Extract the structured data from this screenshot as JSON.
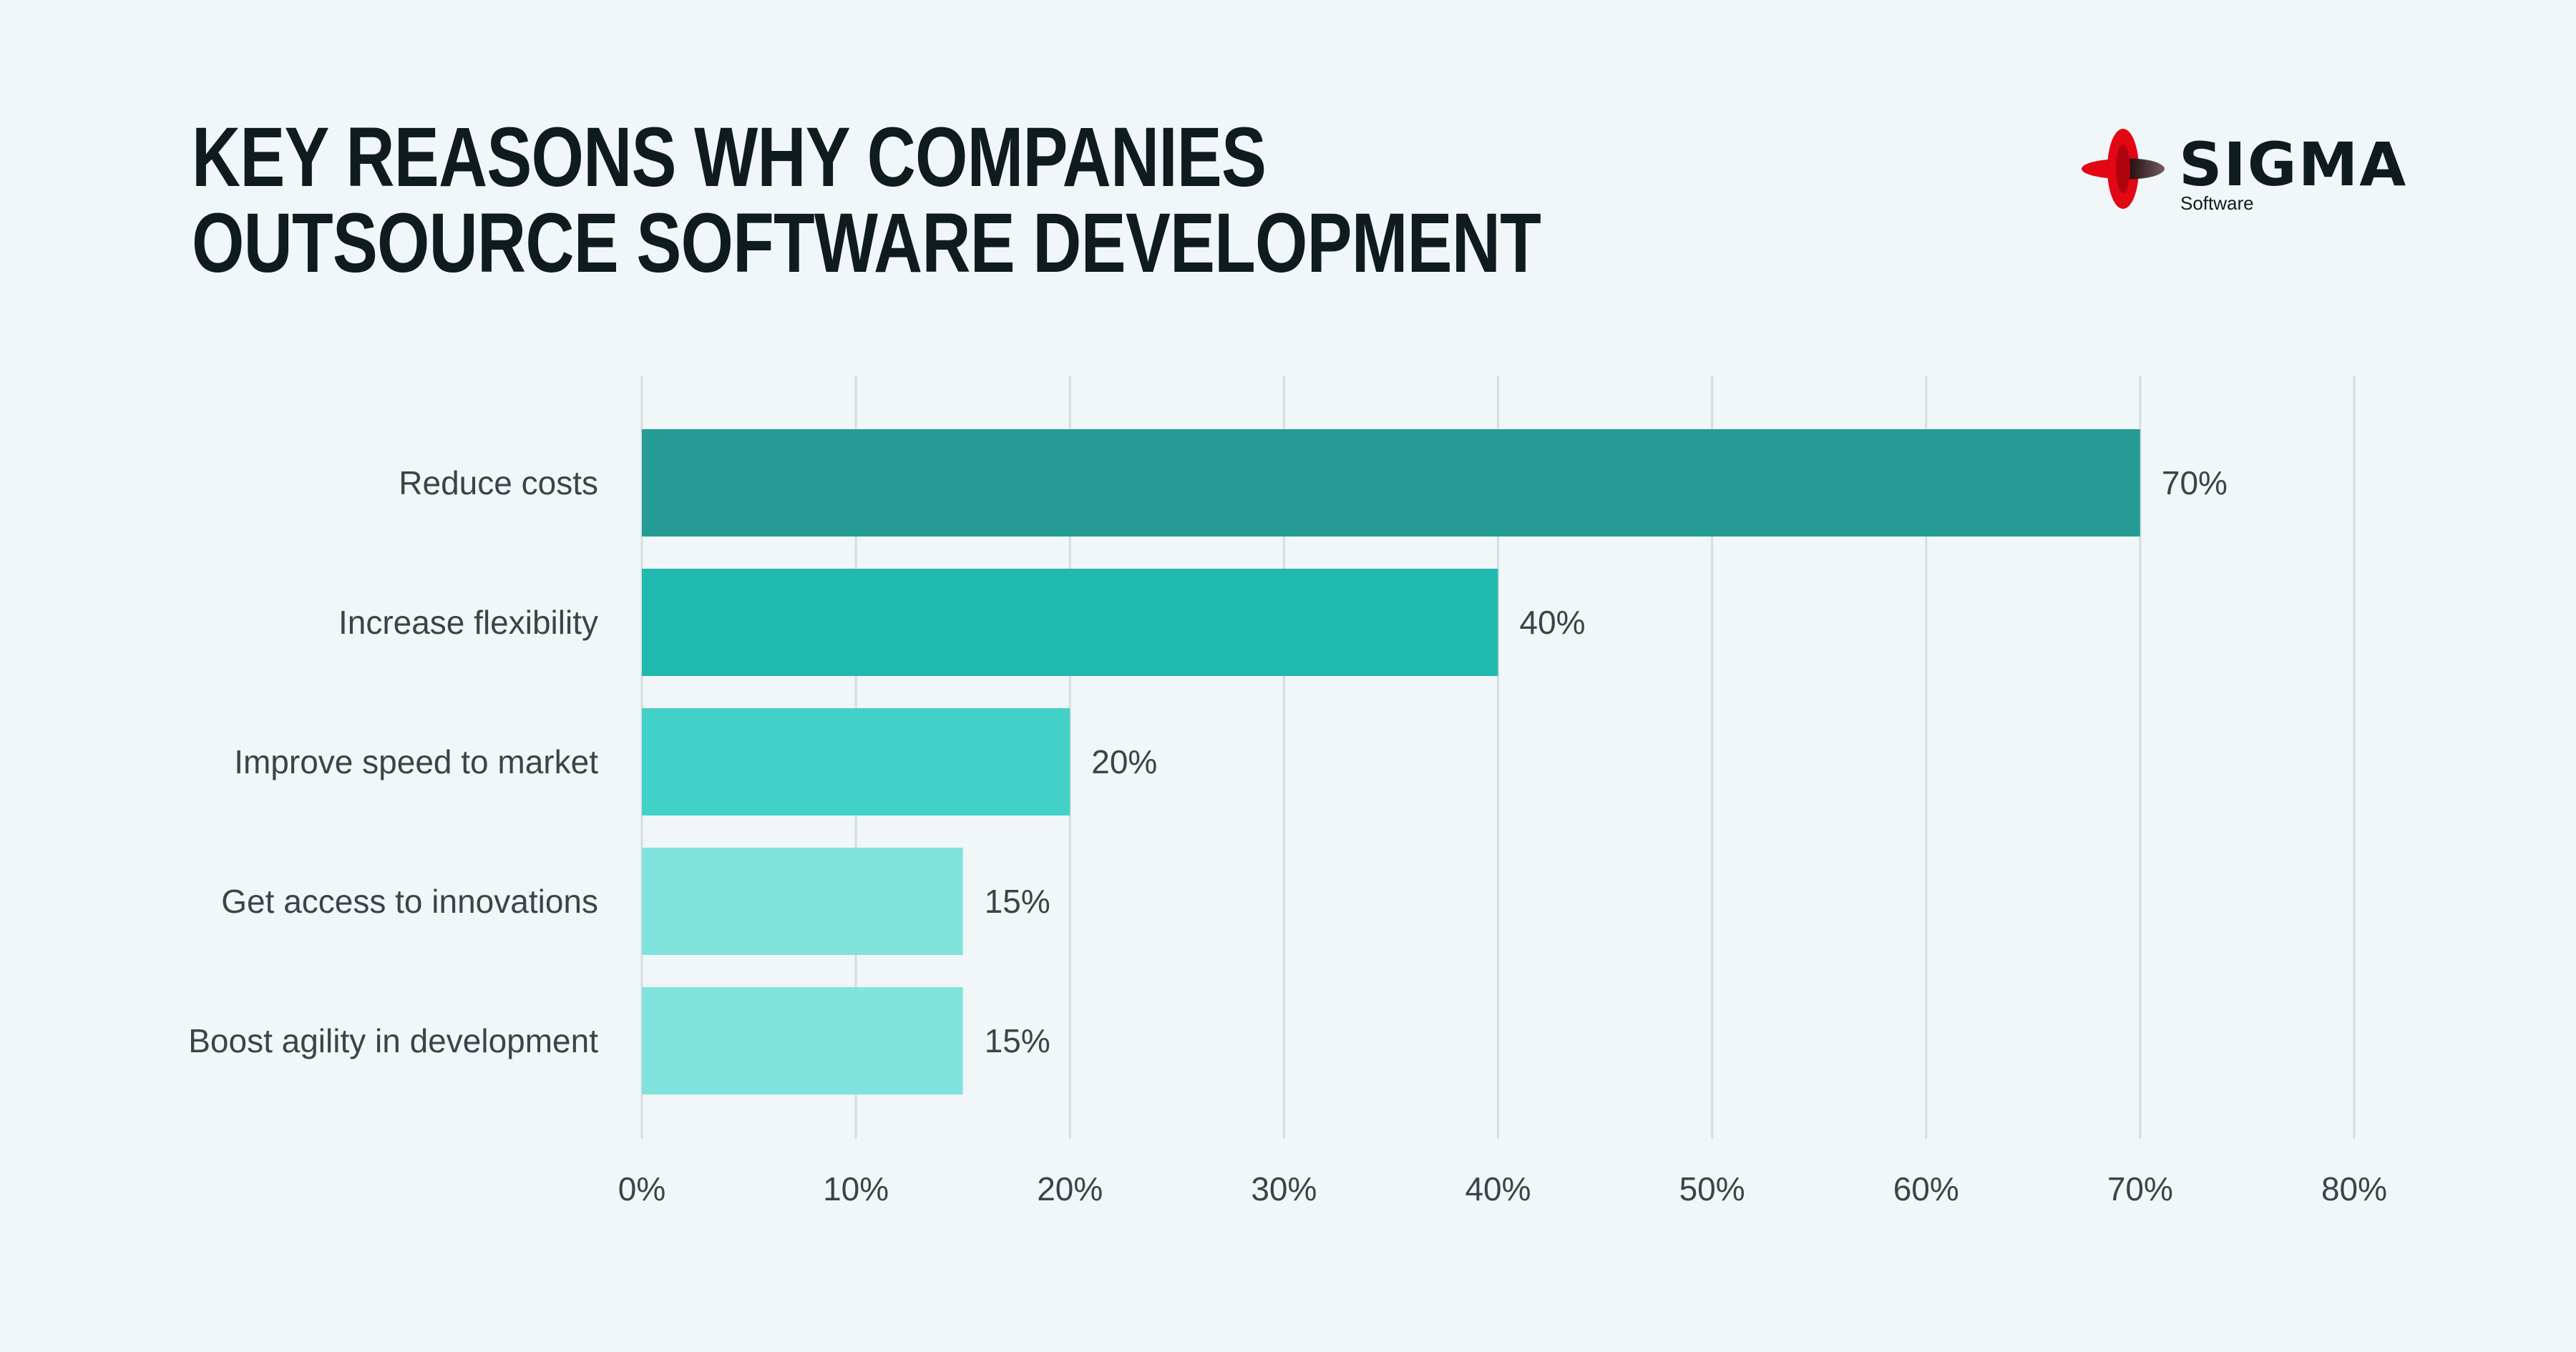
{
  "header": {
    "title_line1": "KEY REASONS WHY COMPANIES",
    "title_line2": "OUTSOURCE SOFTWARE DEVELOPMENT"
  },
  "logo": {
    "wordmark": "SIGMA",
    "subtitle": "Software",
    "icon": "sigma-orbit-icon",
    "accent_color": "#e30613"
  },
  "chart_data": {
    "type": "bar",
    "orientation": "horizontal",
    "title": "KEY REASONS WHY COMPANIES OUTSOURCE SOFTWARE DEVELOPMENT",
    "categories": [
      "Reduce costs",
      "Increase flexibility",
      "Improve speed to market",
      "Get access to innovations",
      "Boost agility in development"
    ],
    "values": [
      70,
      40,
      20,
      15,
      15
    ],
    "value_labels": [
      "70%",
      "40%",
      "20%",
      "15%",
      "15%"
    ],
    "bar_colors": [
      "#259c93",
      "#20b9b0",
      "#42d1c9",
      "#80e3dd",
      "#80e3dd"
    ],
    "xlim": [
      0,
      80
    ],
    "xticks": [
      0,
      10,
      20,
      30,
      40,
      50,
      60,
      70,
      80
    ],
    "xtick_labels": [
      "0%",
      "10%",
      "20%",
      "30%",
      "40%",
      "50%",
      "60%",
      "70%",
      "80%"
    ],
    "grid": true,
    "legend": "none",
    "xlabel": "",
    "ylabel": ""
  }
}
